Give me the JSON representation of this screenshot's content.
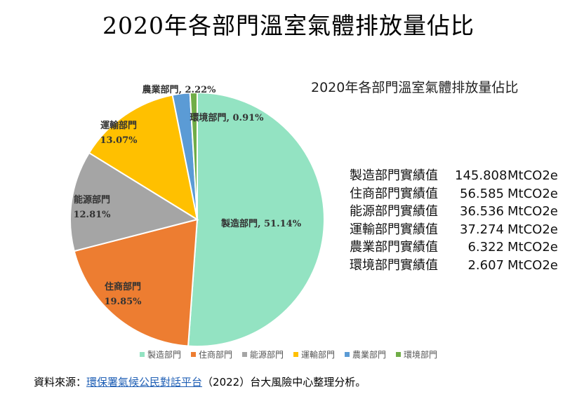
{
  "page_title": "2020年各部門溫室氣體排放量佔比",
  "chart_data": {
    "type": "pie",
    "title": "2020年各部門溫室氣體排放量佔比",
    "start_angle_deg": 0,
    "direction": "clockwise",
    "legend_position": "bottom",
    "slices": [
      {
        "label": "製造部門",
        "percent_label": "51.14%",
        "percent": 51.14,
        "color": "#93e3c2"
      },
      {
        "label": "住商部門",
        "percent_label": "19.85%",
        "percent": 19.85,
        "color": "#ed7d31"
      },
      {
        "label": "能源部門",
        "percent_label": "12.81%",
        "percent": 12.81,
        "color": "#a5a5a5"
      },
      {
        "label": "運輸部門",
        "percent_label": "13.07%",
        "percent": 13.07,
        "color": "#ffc000"
      },
      {
        "label": "農業部門",
        "percent_label": "2.22%",
        "percent": 2.22,
        "color": "#5b9bd5"
      },
      {
        "label": "環境部門",
        "percent_label": "0.91%",
        "percent": 0.91,
        "color": "#70ad47"
      }
    ],
    "slice_labels": [
      {
        "line1": "製造部門, 51.14%",
        "line2": ""
      },
      {
        "line1": "住商部門",
        "line2": "19.85%"
      },
      {
        "line1": "能源部門",
        "line2": "12.81%"
      },
      {
        "line1": "運輸部門",
        "line2": "13.07%"
      },
      {
        "line1": "農業部門, 2.22%",
        "line2": ""
      },
      {
        "line1": "環境部門, 0.91%",
        "line2": ""
      }
    ]
  },
  "values_table": {
    "unit": "MtCO2e",
    "rows": [
      {
        "name": "製造部門實績值",
        "value": "145.808"
      },
      {
        "name": "住商部門實績值",
        "value": "56.585"
      },
      {
        "name": "能源部門實績值",
        "value": "36.536"
      },
      {
        "name": "運輸部門實績值",
        "value": "37.274"
      },
      {
        "name": "農業部門實績值",
        "value": "6.322"
      },
      {
        "name": "環境部門實績值",
        "value": "2.607"
      }
    ]
  },
  "legend": [
    "製造部門",
    "住商部門",
    "能源部門",
    "運輸部門",
    "農業部門",
    "環境部門"
  ],
  "source": {
    "prefix": "資料來源：",
    "link_text": "環保署氣候公民對話平台",
    "suffix": "（2022）台大風險中心整理分析。"
  }
}
